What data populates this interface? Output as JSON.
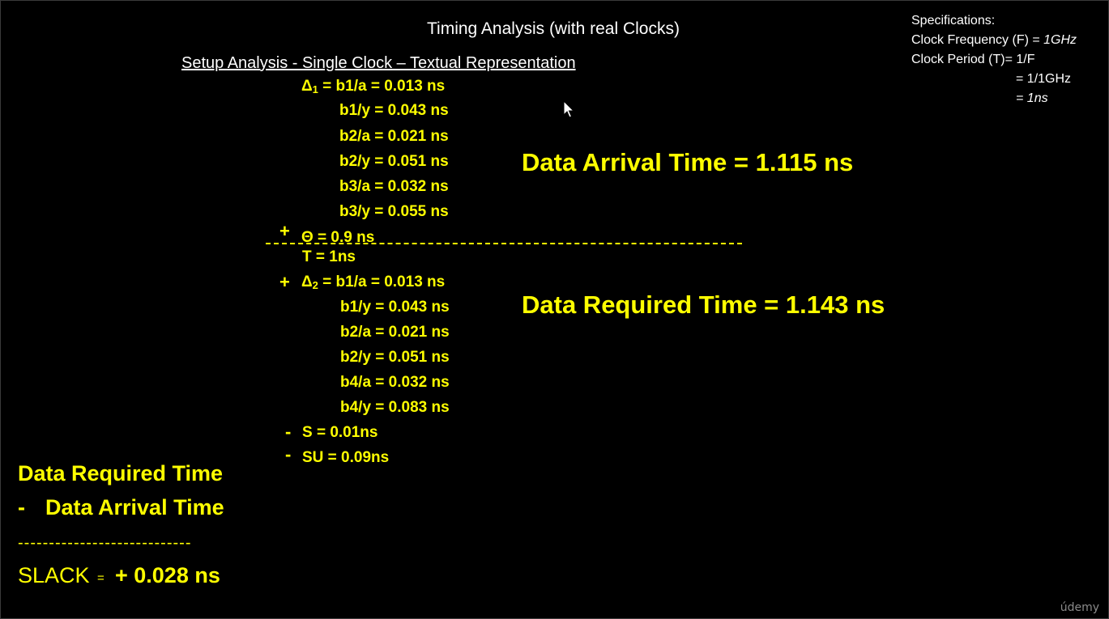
{
  "header": {
    "title": "Timing Analysis (with real Clocks)",
    "subtitle": "Setup Analysis - Single Clock – Textual Representation"
  },
  "specs": {
    "heading": "Specifications:",
    "freq_label": "Clock Frequency (F) = ",
    "freq_value": "1GHz",
    "period_label": "Clock Period (T)= 1/F",
    "period_step": "= 1/1GHz",
    "period_value_prefix": "= ",
    "period_value": "1ns"
  },
  "arrival": {
    "delta_symbol": "Δ",
    "delta_sub": "1",
    "first_rest": " = b1/a = 0.013 ns",
    "lines": [
      "b1/y = 0.043 ns",
      "b2/a = 0.021 ns",
      "b2/y = 0.051 ns",
      "b3/a = 0.032 ns",
      "b3/y = 0.055 ns"
    ],
    "theta_sign": "+",
    "theta": "Θ  = 0.9 ns"
  },
  "required": {
    "period": "T   = 1ns",
    "delta_sign": "+",
    "delta_symbol": "Δ",
    "delta_sub": "2",
    "first_rest": " = b1/a = 0.013 ns",
    "lines": [
      "b1/y = 0.043 ns",
      "b2/a = 0.021 ns",
      "b2/y = 0.051 ns",
      "b4/a = 0.032 ns",
      "b4/y = 0.083 ns"
    ],
    "skew_sign": "-",
    "skew": "S    = 0.01ns",
    "setup_sign": "-",
    "setup": "SU = 0.09ns"
  },
  "results": {
    "arrival_time": "Data Arrival Time = 1.115 ns",
    "required_time": "Data Required Time = 1.143 ns"
  },
  "summary": {
    "required_label": "Data Required Time",
    "minus": "-",
    "arrival_label": "Data Arrival Time",
    "divider": "----------------------------",
    "slack_label": "SLACK",
    "slack_eq": "=",
    "slack_value": "+ 0.028 ns"
  },
  "brand": {
    "watermark": "údemy"
  },
  "icons": {
    "cursor": "mouse-pointer-icon"
  }
}
